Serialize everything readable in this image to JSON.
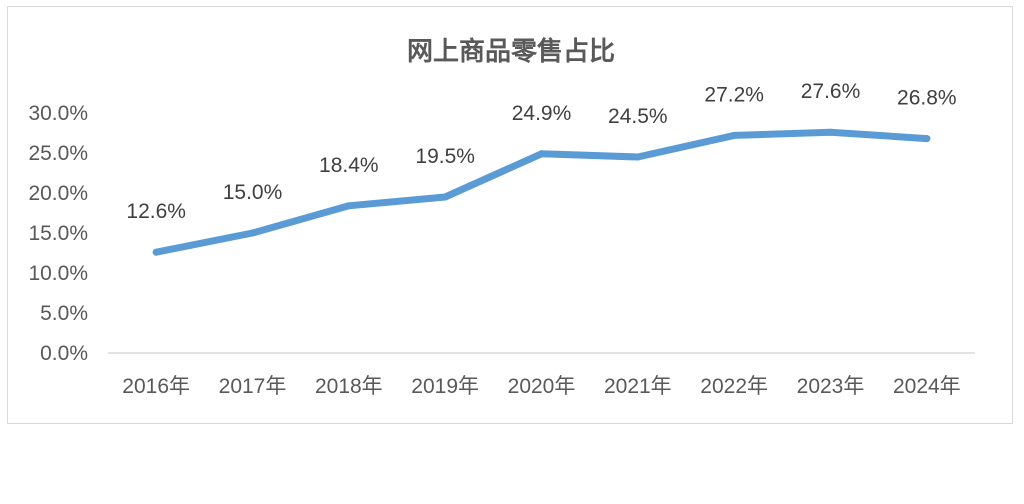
{
  "chart_data": {
    "type": "line",
    "title": "网上商品零售占比",
    "xlabel": "",
    "ylabel": "",
    "categories": [
      "2016年",
      "2017年",
      "2018年",
      "2019年",
      "2020年",
      "2021年",
      "2022年",
      "2023年",
      "2024年"
    ],
    "series": [
      {
        "values": [
          12.6,
          15.0,
          18.4,
          19.5,
          24.9,
          24.5,
          27.2,
          27.6,
          26.8
        ],
        "data_labels": [
          "12.6%",
          "15.0%",
          "18.4%",
          "19.5%",
          "24.9%",
          "24.5%",
          "27.2%",
          "27.6%",
          "26.8%"
        ],
        "color": "#5b9bd5"
      }
    ],
    "ylim": [
      0,
      30
    ],
    "yticks": [
      0,
      5,
      10,
      15,
      20,
      25,
      30
    ],
    "ytick_labels": [
      "0.0%",
      "5.0%",
      "10.0%",
      "15.0%",
      "20.0%",
      "25.0%",
      "30.0%"
    ],
    "grid": false,
    "legend": "none"
  }
}
